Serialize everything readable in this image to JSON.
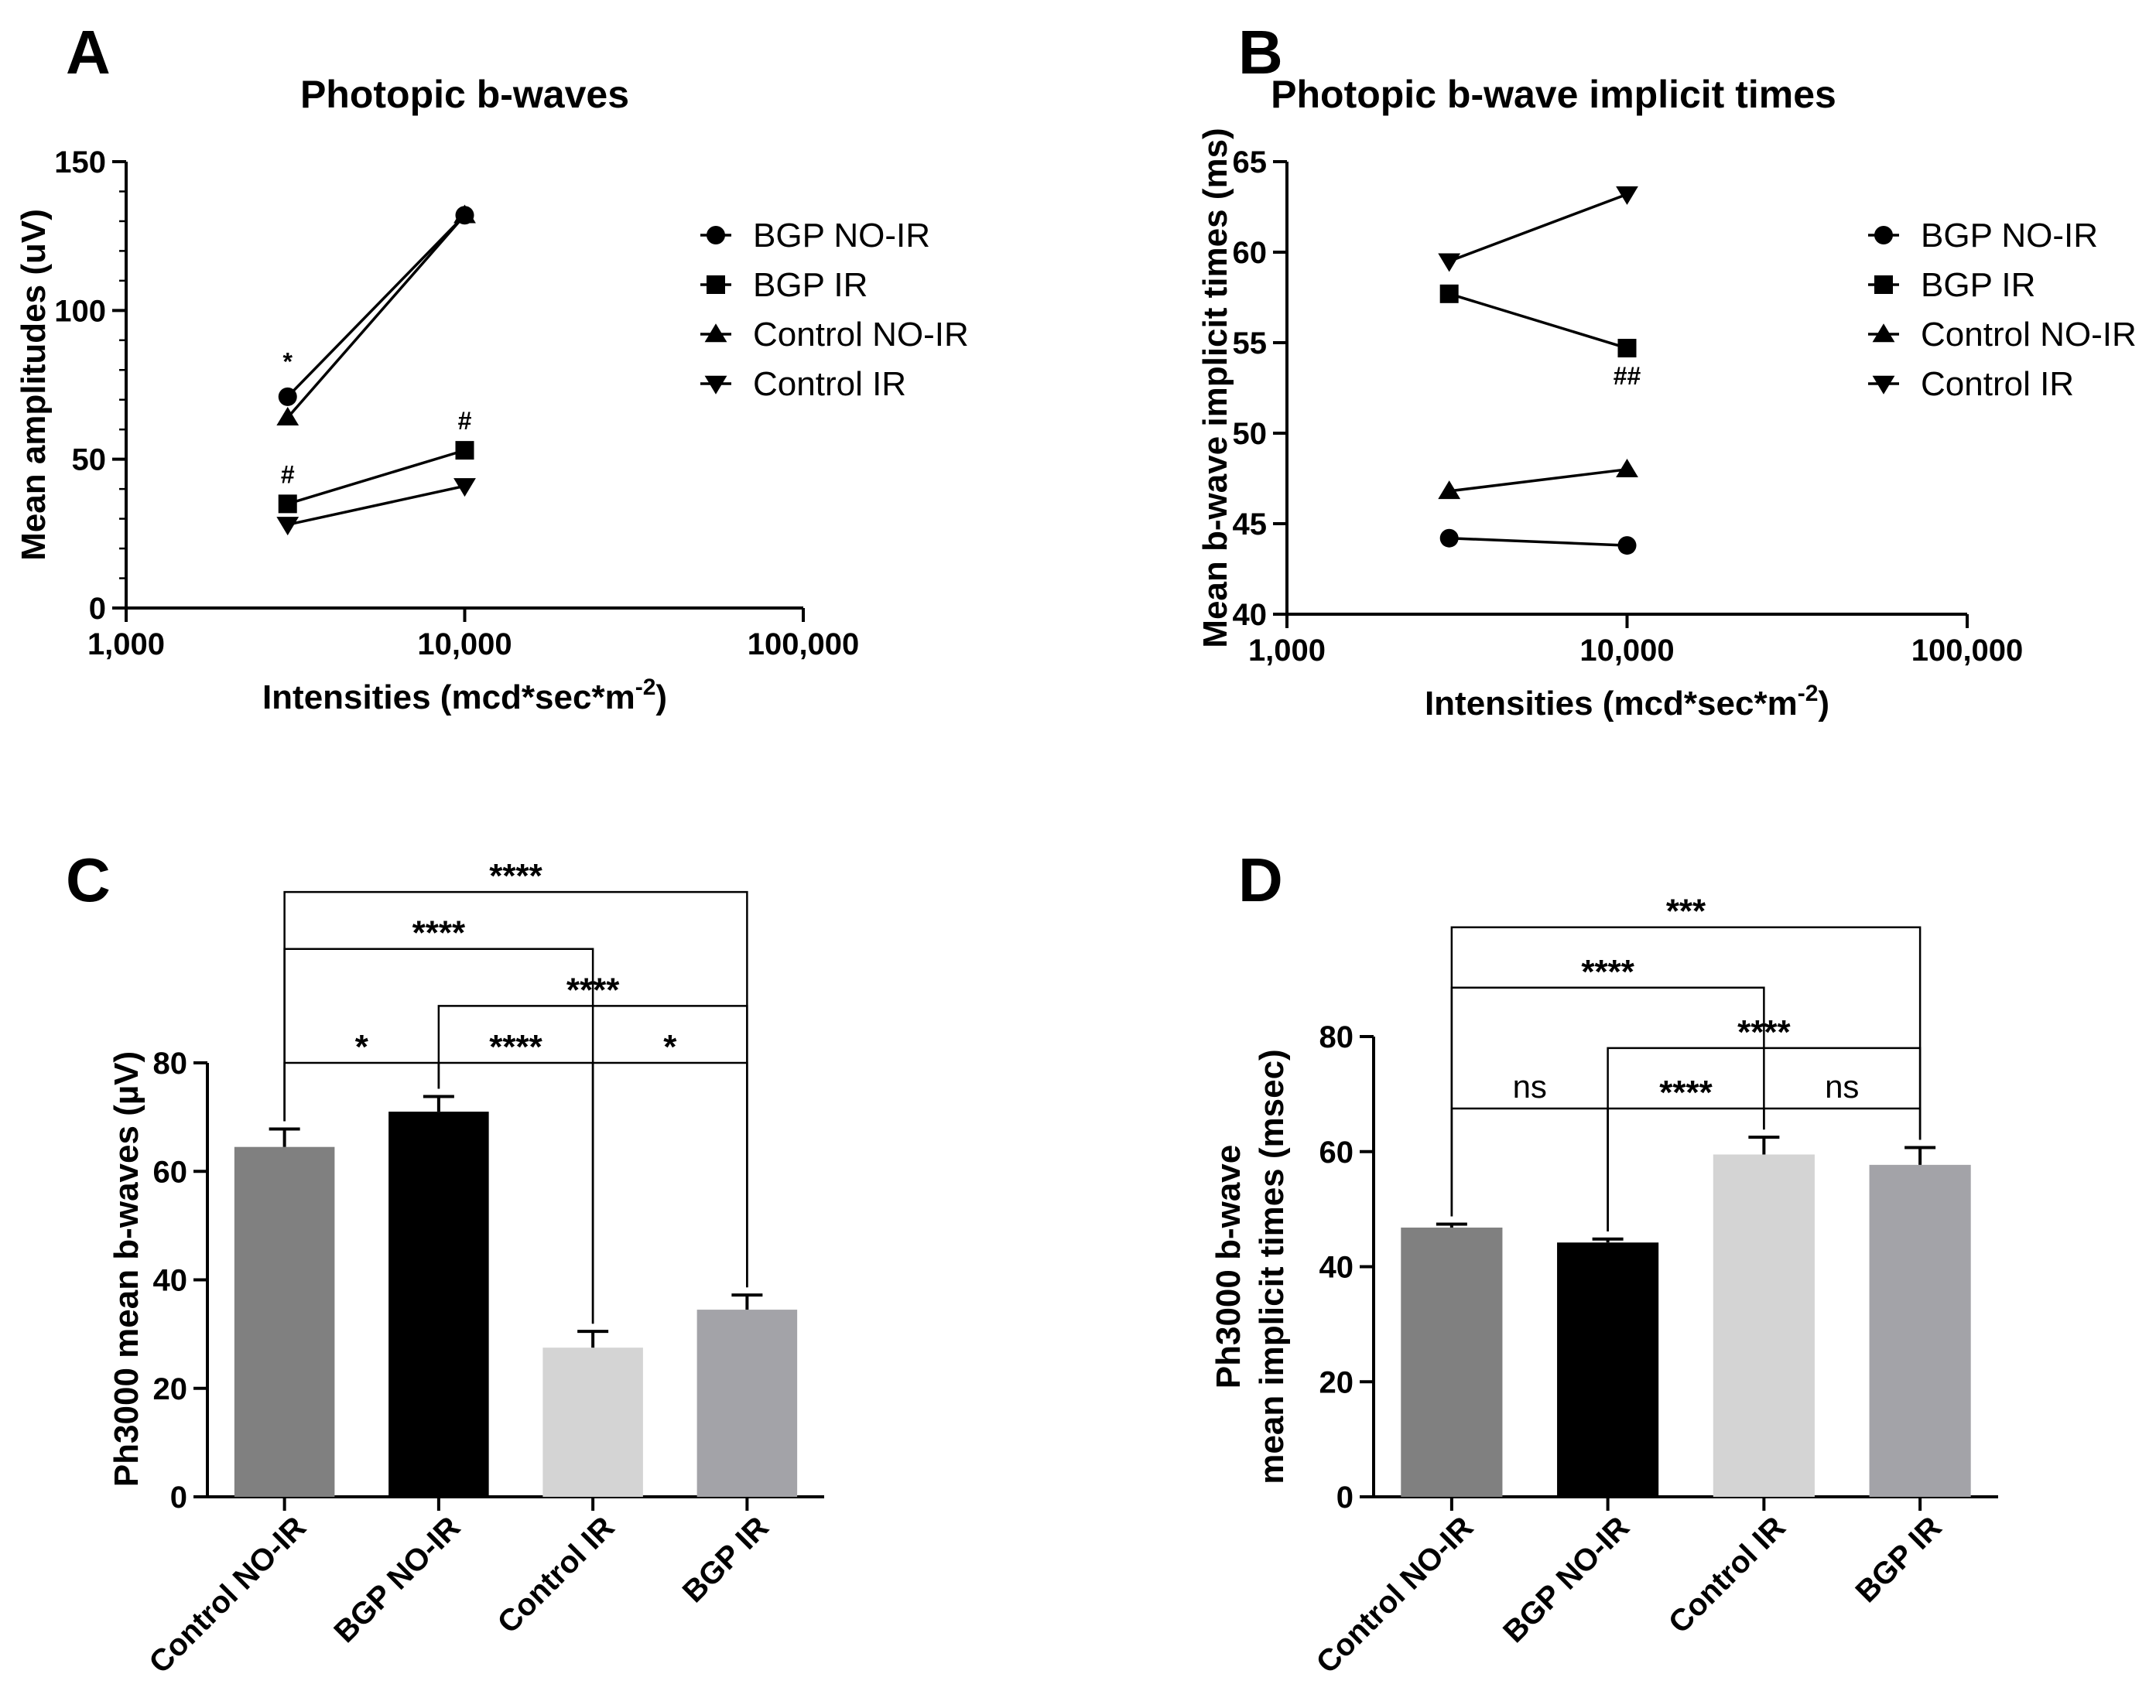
{
  "figure": {
    "panels": [
      {
        "letter": "A"
      },
      {
        "letter": "B"
      },
      {
        "letter": "C"
      },
      {
        "letter": "D"
      }
    ]
  },
  "chart_data": [
    {
      "panel": "A",
      "type": "line",
      "title": "Photopic b-waves",
      "xlabel": "Intensities (mcd*sec*m",
      "xlabel_sup": "-2",
      "xlabel_end": ")",
      "ylabel": "Mean amplitudes (uV)",
      "xscale": "log",
      "xlim": [
        1000,
        100000
      ],
      "ylim": [
        0,
        150
      ],
      "xticks": [
        1000,
        10000,
        100000
      ],
      "xtick_labels": [
        "1,000",
        "10,000",
        "100,000"
      ],
      "yticks": [
        0,
        50,
        100,
        150
      ],
      "ytick_labels": [
        "0",
        "50",
        "100",
        "150"
      ],
      "x": [
        3000,
        10000
      ],
      "series": [
        {
          "name": "BGP NO-IR",
          "marker": "circle",
          "values": [
            71,
            132
          ]
        },
        {
          "name": "BGP IR",
          "marker": "square",
          "values": [
            35,
            53
          ]
        },
        {
          "name": "Control NO-IR",
          "marker": "triangle-up",
          "values": [
            64,
            132
          ]
        },
        {
          "name": "Control IR",
          "marker": "triangle-down",
          "values": [
            28,
            41
          ]
        }
      ],
      "annotations": [
        {
          "text": "*",
          "x": 3000,
          "y": 80
        },
        {
          "text": "#",
          "x": 3000,
          "y": 42
        },
        {
          "text": "#",
          "x": 10000,
          "y": 60
        }
      ],
      "legend_position": "right"
    },
    {
      "panel": "B",
      "type": "line",
      "title": "Photopic b-wave implicit times",
      "xlabel": "Intensities (mcd*sec*m",
      "xlabel_sup": "-2",
      "xlabel_end": ")",
      "ylabel": "Mean b-wave implicit times (ms)",
      "xscale": "log",
      "xlim": [
        1000,
        100000
      ],
      "ylim": [
        40,
        65
      ],
      "xticks": [
        1000,
        10000,
        100000
      ],
      "xtick_labels": [
        "1,000",
        "10,000",
        "100,000"
      ],
      "yticks": [
        40,
        45,
        50,
        55,
        60,
        65
      ],
      "ytick_labels": [
        "40",
        "45",
        "50",
        "55",
        "60",
        "65"
      ],
      "x": [
        3000,
        10000
      ],
      "series": [
        {
          "name": "BGP NO-IR",
          "marker": "circle",
          "values": [
            44.2,
            43.8
          ]
        },
        {
          "name": "BGP IR",
          "marker": "square",
          "values": [
            57.7,
            54.7
          ]
        },
        {
          "name": "Control NO-IR",
          "marker": "triangle-up",
          "values": [
            46.8,
            48.0
          ]
        },
        {
          "name": "Control IR",
          "marker": "triangle-down",
          "values": [
            59.5,
            63.2
          ]
        }
      ],
      "annotations": [
        {
          "text": "##",
          "x": 10000,
          "y": 52.7
        }
      ],
      "legend_position": "right"
    },
    {
      "panel": "C",
      "type": "bar",
      "title": "",
      "ylabel": "Ph3000 mean b-waves (µV)",
      "ylim": [
        0,
        80
      ],
      "yticks": [
        0,
        20,
        40,
        60,
        80
      ],
      "ytick_labels": [
        "0",
        "20",
        "40",
        "60",
        "80"
      ],
      "categories": [
        "Control NO-IR",
        "BGP NO-IR",
        "Control IR",
        "BGP IR"
      ],
      "values": [
        64.5,
        71.0,
        27.5,
        34.5
      ],
      "errors": [
        3.3,
        2.8,
        3.0,
        2.7
      ],
      "colors": [
        "#808080",
        "#000000",
        "#d4d4d4",
        "#a3a3a8"
      ],
      "comparisons": [
        {
          "from": 0,
          "to": 1,
          "level": 80,
          "label": "*"
        },
        {
          "from": 1,
          "to": 2,
          "level": 80,
          "label": "****"
        },
        {
          "from": 2,
          "to": 3,
          "level": 80,
          "label": "*"
        },
        {
          "from": 1,
          "to": 3,
          "level": 90.5,
          "label": "****"
        },
        {
          "from": 0,
          "to": 2,
          "level": 101,
          "label": "****"
        },
        {
          "from": 0,
          "to": 3,
          "level": 111.5,
          "label": "****"
        }
      ]
    },
    {
      "panel": "D",
      "type": "bar",
      "title": "",
      "ylabel": "Ph3000 b-wave",
      "ylabel2": "mean implicit times (msec)",
      "ylim": [
        0,
        80
      ],
      "yticks": [
        0,
        20,
        40,
        60,
        80
      ],
      "ytick_labels": [
        "0",
        "20",
        "40",
        "60",
        "80"
      ],
      "categories": [
        "Control NO-IR",
        "BGP NO-IR",
        "Control IR",
        "BGP IR"
      ],
      "values": [
        46.8,
        44.2,
        59.5,
        57.7
      ],
      "errors": [
        0.6,
        0.6,
        3.0,
        3.0
      ],
      "colors": [
        "#808080",
        "#000000",
        "#d4d4d4",
        "#a3a3a8"
      ],
      "comparisons": [
        {
          "from": 0,
          "to": 1,
          "level": 67.5,
          "label": "ns"
        },
        {
          "from": 1,
          "to": 2,
          "level": 67.5,
          "label": "****"
        },
        {
          "from": 2,
          "to": 3,
          "level": 67.5,
          "label": "ns"
        },
        {
          "from": 1,
          "to": 3,
          "level": 78,
          "label": "****"
        },
        {
          "from": 0,
          "to": 2,
          "level": 88.5,
          "label": "****"
        },
        {
          "from": 0,
          "to": 3,
          "level": 99,
          "label": "***"
        }
      ]
    }
  ]
}
